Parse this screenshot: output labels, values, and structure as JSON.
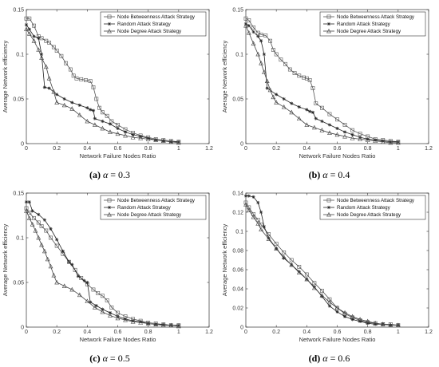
{
  "chart_data": [
    {
      "type": "line",
      "caption": {
        "letter": "(a)",
        "param": "α",
        "eq": "= 0.3"
      },
      "xlabel": "Network Failure Nodes Ratio",
      "ylabel": "Average Network efficiency",
      "xlim": [
        0,
        1.2
      ],
      "ylim": [
        0,
        0.15
      ],
      "xticks": [
        "0",
        "0.2",
        "0.4",
        "0.6",
        "0.8",
        "1",
        "1.2"
      ],
      "yticks": [
        "0",
        "0.05",
        "0.1",
        "0.15"
      ],
      "legend_position": "top-right",
      "series": [
        {
          "name": "Node Betweenness Attack Strategy",
          "marker": "square",
          "x": [
            0,
            0.02,
            0.05,
            0.08,
            0.1,
            0.13,
            0.15,
            0.18,
            0.2,
            0.23,
            0.26,
            0.29,
            0.31,
            0.33,
            0.36,
            0.39,
            0.42,
            0.44,
            0.46,
            0.48,
            0.5,
            0.53,
            0.56,
            0.6,
            0.65,
            0.7,
            0.75,
            0.8,
            0.85,
            0.9,
            0.95,
            1.0
          ],
          "y": [
            0.14,
            0.14,
            0.132,
            0.12,
            0.118,
            0.115,
            0.113,
            0.108,
            0.104,
            0.098,
            0.09,
            0.083,
            0.076,
            0.073,
            0.072,
            0.071,
            0.07,
            0.063,
            0.05,
            0.04,
            0.035,
            0.031,
            0.025,
            0.021,
            0.016,
            0.012,
            0.009,
            0.007,
            0.005,
            0.004,
            0.003,
            0.002
          ]
        },
        {
          "name": "Random Attack Strategy",
          "marker": "star",
          "x": [
            0,
            0.02,
            0.05,
            0.08,
            0.1,
            0.12,
            0.15,
            0.2,
            0.25,
            0.3,
            0.35,
            0.4,
            0.42,
            0.44,
            0.45,
            0.5,
            0.55,
            0.6,
            0.65,
            0.7,
            0.75,
            0.8,
            0.85,
            0.9,
            0.95,
            1.0
          ],
          "y": [
            0.133,
            0.128,
            0.12,
            0.118,
            0.1,
            0.063,
            0.062,
            0.055,
            0.05,
            0.046,
            0.043,
            0.04,
            0.038,
            0.037,
            0.028,
            0.025,
            0.022,
            0.017,
            0.013,
            0.01,
            0.008,
            0.006,
            0.004,
            0.003,
            0.002,
            0.002
          ]
        },
        {
          "name": "Node Degree Attack Strategy",
          "marker": "triangle",
          "x": [
            0,
            0.02,
            0.05,
            0.08,
            0.1,
            0.13,
            0.15,
            0.18,
            0.2,
            0.25,
            0.3,
            0.35,
            0.4,
            0.45,
            0.5,
            0.55,
            0.6,
            0.65,
            0.7,
            0.75,
            0.8,
            0.85,
            0.9,
            0.95,
            1.0
          ],
          "y": [
            0.128,
            0.123,
            0.115,
            0.105,
            0.096,
            0.086,
            0.073,
            0.058,
            0.046,
            0.043,
            0.039,
            0.032,
            0.025,
            0.021,
            0.017,
            0.013,
            0.011,
            0.009,
            0.007,
            0.006,
            0.005,
            0.004,
            0.003,
            0.002,
            0.001
          ]
        }
      ]
    },
    {
      "type": "line",
      "caption": {
        "letter": "(b)",
        "param": "α",
        "eq": "= 0.4"
      },
      "xlabel": "Network Failure Nodes Ratio",
      "ylabel": "Average Network efficiency",
      "xlim": [
        0,
        1.2
      ],
      "ylim": [
        0,
        0.15
      ],
      "xticks": [
        "0",
        "0.2",
        "0.4",
        "0.6",
        "0.8",
        "1",
        "1.2"
      ],
      "yticks": [
        "0",
        "0.05",
        "0.1",
        "0.15"
      ],
      "legend_position": "top-right",
      "series": [
        {
          "name": "Node Betweenness Attack Strategy",
          "marker": "square",
          "x": [
            0,
            0.02,
            0.05,
            0.08,
            0.1,
            0.13,
            0.16,
            0.18,
            0.2,
            0.23,
            0.26,
            0.29,
            0.32,
            0.35,
            0.38,
            0.4,
            0.42,
            0.44,
            0.46,
            0.5,
            0.55,
            0.6,
            0.65,
            0.7,
            0.75,
            0.8,
            0.85,
            0.9,
            0.95,
            1.0
          ],
          "y": [
            0.14,
            0.138,
            0.13,
            0.124,
            0.122,
            0.121,
            0.115,
            0.105,
            0.1,
            0.094,
            0.089,
            0.083,
            0.079,
            0.076,
            0.074,
            0.073,
            0.071,
            0.062,
            0.045,
            0.04,
            0.033,
            0.027,
            0.021,
            0.015,
            0.011,
            0.008,
            0.005,
            0.004,
            0.003,
            0.002
          ]
        },
        {
          "name": "Random Attack Strategy",
          "marker": "star",
          "x": [
            0,
            0.02,
            0.05,
            0.08,
            0.1,
            0.12,
            0.14,
            0.2,
            0.25,
            0.3,
            0.35,
            0.4,
            0.42,
            0.44,
            0.46,
            0.5,
            0.55,
            0.6,
            0.65,
            0.7,
            0.75,
            0.8,
            0.85,
            0.9,
            0.95,
            1.0
          ],
          "y": [
            0.134,
            0.132,
            0.125,
            0.12,
            0.115,
            0.1,
            0.062,
            0.055,
            0.05,
            0.045,
            0.041,
            0.038,
            0.036,
            0.035,
            0.028,
            0.025,
            0.021,
            0.017,
            0.013,
            0.01,
            0.007,
            0.005,
            0.004,
            0.003,
            0.002,
            0.002
          ]
        },
        {
          "name": "Node Degree Attack Strategy",
          "marker": "triangle",
          "x": [
            0,
            0.02,
            0.05,
            0.08,
            0.1,
            0.12,
            0.14,
            0.16,
            0.18,
            0.2,
            0.25,
            0.3,
            0.35,
            0.4,
            0.45,
            0.5,
            0.55,
            0.6,
            0.65,
            0.7,
            0.75,
            0.8,
            0.85,
            0.9,
            0.95,
            1.0
          ],
          "y": [
            0.132,
            0.124,
            0.112,
            0.1,
            0.09,
            0.08,
            0.07,
            0.06,
            0.052,
            0.046,
            0.041,
            0.035,
            0.028,
            0.021,
            0.018,
            0.015,
            0.012,
            0.01,
            0.008,
            0.006,
            0.005,
            0.004,
            0.003,
            0.002,
            0.001,
            0.001
          ]
        }
      ]
    },
    {
      "type": "line",
      "caption": {
        "letter": "(c)",
        "param": "α",
        "eq": "= 0.5"
      },
      "xlabel": "Network Failure Nodes Ratio",
      "ylabel": "Average Network efficiency",
      "xlim": [
        0,
        1.2
      ],
      "ylim": [
        0,
        0.15
      ],
      "xticks": [
        "0",
        "0.2",
        "0.4",
        "0.6",
        "0.8",
        "1",
        "1.2"
      ],
      "yticks": [
        "0",
        "0.05",
        "0.1",
        "0.15"
      ],
      "legend_position": "top-right",
      "series": [
        {
          "name": "Node Betweenness Attack Strategy",
          "marker": "square",
          "x": [
            0,
            0.02,
            0.05,
            0.08,
            0.1,
            0.13,
            0.16,
            0.2,
            0.24,
            0.28,
            0.32,
            0.36,
            0.4,
            0.44,
            0.47,
            0.5,
            0.53,
            0.56,
            0.6,
            0.65,
            0.7,
            0.75,
            0.8,
            0.85,
            0.9,
            0.95,
            1.0
          ],
          "y": [
            0.133,
            0.128,
            0.122,
            0.117,
            0.113,
            0.108,
            0.1,
            0.091,
            0.082,
            0.073,
            0.064,
            0.055,
            0.048,
            0.042,
            0.038,
            0.035,
            0.03,
            0.022,
            0.016,
            0.012,
            0.009,
            0.007,
            0.005,
            0.004,
            0.003,
            0.002,
            0.002
          ]
        },
        {
          "name": "Random Attack Strategy",
          "marker": "star",
          "x": [
            0,
            0.02,
            0.04,
            0.08,
            0.12,
            0.16,
            0.2,
            0.24,
            0.28,
            0.3,
            0.34,
            0.38,
            0.4,
            0.42,
            0.46,
            0.5,
            0.55,
            0.6,
            0.65,
            0.7,
            0.75,
            0.8,
            0.85,
            0.9,
            0.95,
            1.0
          ],
          "y": [
            0.14,
            0.14,
            0.13,
            0.126,
            0.12,
            0.11,
            0.098,
            0.085,
            0.073,
            0.07,
            0.057,
            0.052,
            0.05,
            0.028,
            0.024,
            0.02,
            0.016,
            0.012,
            0.009,
            0.007,
            0.006,
            0.004,
            0.003,
            0.003,
            0.002,
            0.002
          ]
        },
        {
          "name": "Node Degree Attack Strategy",
          "marker": "triangle",
          "x": [
            0,
            0.02,
            0.04,
            0.06,
            0.08,
            0.1,
            0.12,
            0.14,
            0.16,
            0.18,
            0.2,
            0.25,
            0.3,
            0.35,
            0.4,
            0.45,
            0.5,
            0.55,
            0.6,
            0.65,
            0.7,
            0.75,
            0.8,
            0.85,
            0.9,
            0.95,
            1.0
          ],
          "y": [
            0.13,
            0.122,
            0.115,
            0.108,
            0.1,
            0.092,
            0.085,
            0.076,
            0.068,
            0.058,
            0.05,
            0.046,
            0.042,
            0.036,
            0.029,
            0.022,
            0.017,
            0.013,
            0.01,
            0.008,
            0.006,
            0.005,
            0.004,
            0.003,
            0.002,
            0.002,
            0.001
          ]
        }
      ]
    },
    {
      "type": "line",
      "caption": {
        "letter": "(d)",
        "param": "α",
        "eq": "= 0.6"
      },
      "xlabel": "Network Failure Nodes Ratio",
      "ylabel": "Average Network efficiency",
      "xlim": [
        0,
        1.2
      ],
      "ylim": [
        0,
        0.14
      ],
      "xticks": [
        "0",
        "0.2",
        "0.4",
        "0.6",
        "0.8",
        "1",
        "1.2"
      ],
      "yticks": [
        "0",
        "0.02",
        "0.04",
        "0.06",
        "0.08",
        "0.1",
        "0.12",
        "0.14"
      ],
      "legend_position": "top-right",
      "series": [
        {
          "name": "Node Betweenness Attack Strategy",
          "marker": "square",
          "x": [
            0,
            0.02,
            0.05,
            0.08,
            0.1,
            0.15,
            0.2,
            0.25,
            0.3,
            0.35,
            0.4,
            0.45,
            0.5,
            0.55,
            0.6,
            0.65,
            0.7,
            0.75,
            0.8,
            0.85,
            0.9,
            0.95,
            1.0
          ],
          "y": [
            0.13,
            0.125,
            0.118,
            0.112,
            0.107,
            0.097,
            0.087,
            0.078,
            0.07,
            0.063,
            0.055,
            0.046,
            0.038,
            0.029,
            0.02,
            0.014,
            0.01,
            0.007,
            0.005,
            0.004,
            0.003,
            0.003,
            0.002
          ]
        },
        {
          "name": "Random Attack Strategy",
          "marker": "star",
          "x": [
            0,
            0.02,
            0.05,
            0.08,
            0.1,
            0.12,
            0.15,
            0.2,
            0.25,
            0.3,
            0.35,
            0.4,
            0.45,
            0.5,
            0.55,
            0.6,
            0.65,
            0.7,
            0.75,
            0.8,
            0.85,
            0.9,
            0.95,
            1.0
          ],
          "y": [
            0.137,
            0.137,
            0.136,
            0.13,
            0.12,
            0.105,
            0.093,
            0.082,
            0.072,
            0.065,
            0.058,
            0.05,
            0.042,
            0.032,
            0.022,
            0.016,
            0.011,
            0.008,
            0.006,
            0.004,
            0.003,
            0.003,
            0.002,
            0.002
          ]
        },
        {
          "name": "Node Degree Attack Strategy",
          "marker": "triangle",
          "x": [
            0,
            0.02,
            0.05,
            0.08,
            0.1,
            0.15,
            0.2,
            0.25,
            0.3,
            0.35,
            0.4,
            0.45,
            0.5,
            0.55,
            0.6,
            0.65,
            0.7,
            0.75,
            0.8,
            0.85,
            0.9,
            0.95,
            1.0
          ],
          "y": [
            0.128,
            0.122,
            0.115,
            0.108,
            0.102,
            0.092,
            0.082,
            0.073,
            0.065,
            0.057,
            0.05,
            0.041,
            0.033,
            0.026,
            0.02,
            0.015,
            0.011,
            0.008,
            0.006,
            0.004,
            0.003,
            0.002,
            0.002
          ]
        }
      ]
    }
  ]
}
